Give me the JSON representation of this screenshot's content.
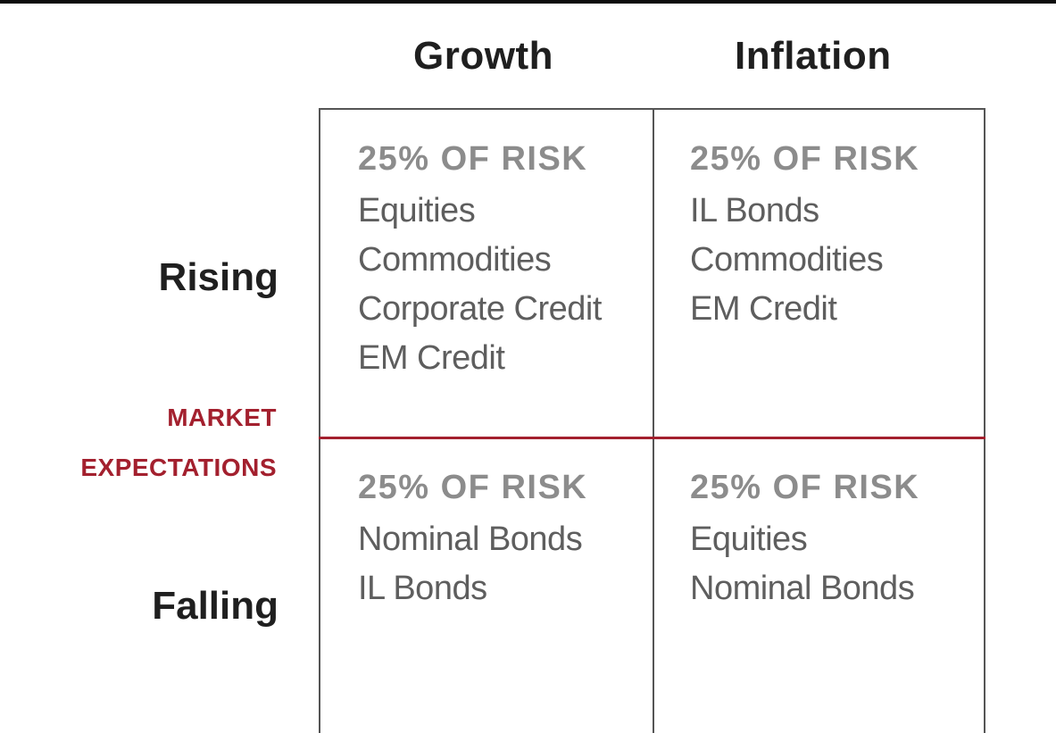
{
  "columns": [
    "Growth",
    "Inflation"
  ],
  "rows": [
    "Rising",
    "Falling"
  ],
  "center_label": [
    "MARKET",
    "EXPECTATIONS"
  ],
  "colors": {
    "accent": "#a3202e",
    "grid_line": "#555555",
    "risk_text": "#8c8c8c",
    "asset_text": "#5e5e5e"
  },
  "cells": [
    {
      "risk": "25% OF RISK",
      "assets": [
        "Equities",
        "Commodities",
        "Corporate Credit",
        "EM Credit"
      ]
    },
    {
      "risk": "25% OF RISK",
      "assets": [
        "IL Bonds",
        "Commodities",
        "EM Credit"
      ]
    },
    {
      "risk": "25% OF RISK",
      "assets": [
        "Nominal Bonds",
        "IL Bonds"
      ]
    },
    {
      "risk": "25% OF RISK",
      "assets": [
        "Equities",
        "Nominal Bonds"
      ]
    }
  ]
}
